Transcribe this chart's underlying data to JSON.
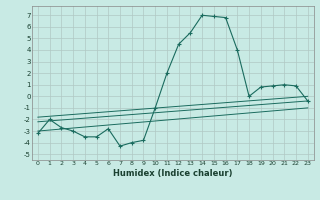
{
  "title": "",
  "xlabel": "Humidex (Indice chaleur)",
  "xlim": [
    -0.5,
    23.5
  ],
  "ylim": [
    -5.5,
    7.8
  ],
  "yticks": [
    -5,
    -4,
    -3,
    -2,
    -1,
    0,
    1,
    2,
    3,
    4,
    5,
    6,
    7
  ],
  "xticks": [
    0,
    1,
    2,
    3,
    4,
    5,
    6,
    7,
    8,
    9,
    10,
    11,
    12,
    13,
    14,
    15,
    16,
    17,
    18,
    19,
    20,
    21,
    22,
    23
  ],
  "xtick_labels": [
    "0",
    "1",
    "2",
    "3",
    "4",
    "5",
    "6",
    "7",
    "8",
    "9",
    "10",
    "11",
    "12",
    "13",
    "14",
    "15",
    "16",
    "17",
    "18",
    "19",
    "20",
    "21",
    "22",
    "23"
  ],
  "bg_color": "#c8eae4",
  "grid_color": "#b0c8c4",
  "line_color": "#1a6b5e",
  "main_curve_x": [
    0,
    1,
    2,
    3,
    4,
    5,
    6,
    7,
    8,
    9,
    10,
    11,
    12,
    13,
    14,
    15,
    16,
    17,
    18,
    19,
    20,
    21,
    22,
    23
  ],
  "main_curve_y": [
    -3.2,
    -2.0,
    -2.7,
    -3.0,
    -3.5,
    -3.5,
    -2.8,
    -4.3,
    -4.0,
    -3.8,
    -1.0,
    2.0,
    4.5,
    5.5,
    7.0,
    6.9,
    6.8,
    4.0,
    0.0,
    0.8,
    0.9,
    1.0,
    0.9,
    -0.4
  ],
  "ref_lines": [
    {
      "x": [
        0,
        23
      ],
      "y": [
        -1.8,
        0.0
      ]
    },
    {
      "x": [
        0,
        23
      ],
      "y": [
        -2.2,
        -0.4
      ]
    },
    {
      "x": [
        0,
        23
      ],
      "y": [
        -3.0,
        -1.0
      ]
    }
  ]
}
